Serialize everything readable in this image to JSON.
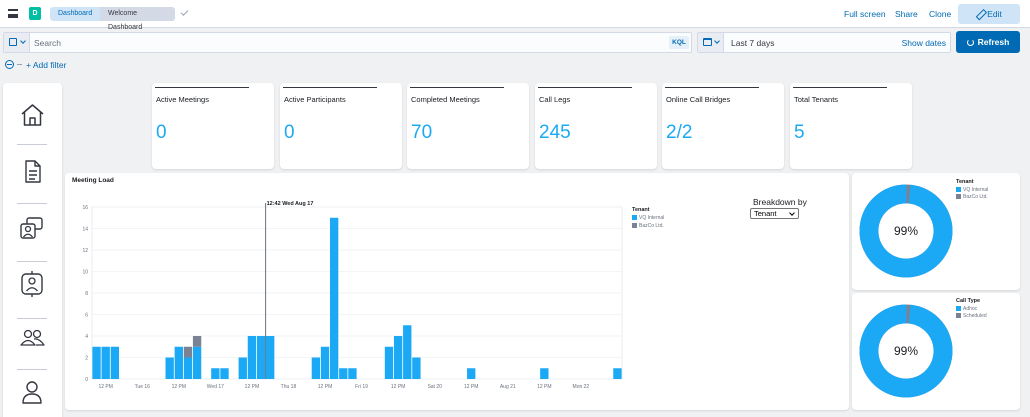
{
  "header": {
    "space_initial": "D",
    "breadcrumbs": [
      "Dashboard",
      "Welcome Dashboard"
    ],
    "actions": [
      "Full screen",
      "Share",
      "Clone"
    ],
    "edit_label": "Edit"
  },
  "query": {
    "placeholder": "Search",
    "language": "KQL",
    "date_range": "Last 7 days",
    "show_dates": "Show dates",
    "refresh_label": "Refresh",
    "add_filter": "+ Add filter"
  },
  "stats": [
    {
      "label": "Active Meetings",
      "value": "0"
    },
    {
      "label": "Active Participants",
      "value": "0"
    },
    {
      "label": "Completed Meetings",
      "value": "70"
    },
    {
      "label": "Call Legs",
      "value": "245"
    },
    {
      "label": "Online Call Bridges",
      "value": "2/2"
    },
    {
      "label": "Total Tenants",
      "value": "5"
    }
  ],
  "meeting_load": {
    "title": "Meeting Load",
    "cursor_label": "12:42 Wed Aug 17",
    "breakdown_label": "Breakdown by",
    "breakdown_value": "Tenant",
    "legend_title": "Tenant",
    "colors": {
      "primary": "#1ba9f5",
      "secondary": "#7b8293"
    }
  },
  "tenant_donut": {
    "legend_title": "Tenant",
    "entries": [
      "VQ Internal",
      "BazCo Ltd."
    ],
    "percent_label": "99%",
    "fraction": 0.985
  },
  "calltype_donut": {
    "legend_title": "Call Type",
    "entries": [
      "Adhoc",
      "Scheduled"
    ],
    "percent_label": "99%",
    "fraction": 0.985
  },
  "chart_data": {
    "type": "bar",
    "title": "Meeting Load",
    "ylim": [
      0,
      16
    ],
    "yticks": [
      0,
      2,
      4,
      6,
      8,
      10,
      12,
      14,
      16
    ],
    "grid": true,
    "legend_placement": "right",
    "slots_per_day": 8,
    "x_tick_labels": [
      "12 PM",
      "Tue 16",
      "12 PM",
      "Wed 17",
      "12 PM",
      "Thu 18",
      "12 PM",
      "Fri 19",
      "12 PM",
      "Sat 20",
      "12 PM",
      "Aug 21",
      "12 PM",
      "Mon 22"
    ],
    "series": [
      {
        "name": "VQ Internal",
        "values": [
          3,
          3,
          3,
          0,
          0,
          0,
          0,
          0,
          2,
          3,
          2,
          3,
          0,
          1,
          1,
          0,
          2,
          4,
          4,
          4,
          0,
          0,
          0,
          0,
          2,
          3,
          15,
          1,
          1,
          0,
          0,
          0,
          3,
          4,
          5,
          2,
          0,
          0,
          0,
          0,
          0,
          1,
          0,
          0,
          0,
          0,
          0,
          0,
          0,
          1,
          0,
          0,
          0,
          0,
          0,
          0,
          0,
          1
        ]
      },
      {
        "name": "BazCo Ltd.",
        "values": [
          0,
          0,
          0,
          0,
          0,
          0,
          0,
          0,
          0,
          0,
          1,
          1,
          0,
          0,
          0,
          0,
          0,
          0,
          0,
          0,
          0,
          0,
          0,
          0,
          0,
          0,
          0,
          0,
          0,
          0,
          0,
          0,
          0,
          0,
          0,
          0,
          0,
          0,
          0,
          0,
          0,
          0,
          0,
          0,
          0,
          0,
          0,
          0,
          0,
          0,
          0,
          0,
          0,
          0,
          0,
          0,
          0,
          0
        ]
      }
    ],
    "cursor_slot": 19
  }
}
